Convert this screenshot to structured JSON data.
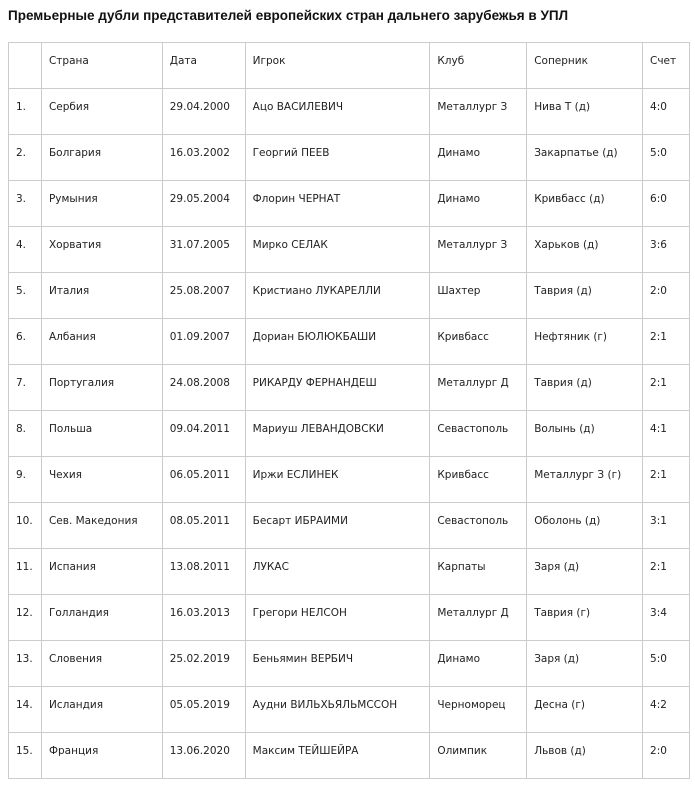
{
  "title": "Премьерные дубли представителей европейских стран дальнего зарубежья в УПЛ",
  "table": {
    "headers": [
      "",
      "Страна",
      "Дата",
      "Игрок",
      "Клуб",
      "Соперник",
      "Счет"
    ],
    "rows": [
      [
        "1.",
        "Сербия",
        "29.04.2000",
        "Ацо ВАСИЛЕВИЧ",
        "Металлург З",
        "Нива Т (д)",
        "4:0"
      ],
      [
        "2.",
        "Болгария",
        "16.03.2002",
        "Георгий ПЕЕВ",
        "Динамо",
        "Закарпатье (д)",
        "5:0"
      ],
      [
        "3.",
        "Румыния",
        "29.05.2004",
        "Флорин ЧЕРНАТ",
        "Динамо",
        "Кривбасс (д)",
        "6:0"
      ],
      [
        "4.",
        "Хорватия",
        "31.07.2005",
        "Мирко СЕЛАК",
        "Металлург З",
        "Харьков (д)",
        "3:6"
      ],
      [
        "5.",
        "Италия",
        "25.08.2007",
        "Кристиано ЛУКАРЕЛЛИ",
        "Шахтер",
        "Таврия (д)",
        "2:0"
      ],
      [
        "6.",
        "Албания",
        "01.09.2007",
        "Дориан БЮЛЮКБАШИ",
        "Кривбасс",
        "Нефтяник (г)",
        "2:1"
      ],
      [
        "7.",
        "Португалия",
        "24.08.2008",
        "РИКАРДУ ФЕРНАНДЕШ",
        "Металлург Д",
        "Таврия (д)",
        "2:1"
      ],
      [
        "8.",
        "Польша",
        "09.04.2011",
        "Мариуш ЛЕВАНДОВСКИ",
        "Севастополь",
        "Волынь (д)",
        "4:1"
      ],
      [
        "9.",
        "Чехия",
        "06.05.2011",
        "Иржи ЕСЛИНЕК",
        "Кривбасс",
        "Металлург З (г)",
        "2:1"
      ],
      [
        "10.",
        "Сев. Македония",
        "08.05.2011",
        "Бесарт ИБРАИМИ",
        "Севастополь",
        "Оболонь (д)",
        "3:1"
      ],
      [
        "11.",
        "Испания",
        "13.08.2011",
        "ЛУКАС",
        "Карпаты",
        "Заря (д)",
        "2:1"
      ],
      [
        "12.",
        "Голландия",
        "16.03.2013",
        "Грегори НЕЛСОН",
        "Металлург Д",
        "Таврия (г)",
        "3:4"
      ],
      [
        "13.",
        "Словения",
        "25.02.2019",
        "Беньямин ВЕРБИЧ",
        "Динамо",
        "Заря (д)",
        "5:0"
      ],
      [
        "14.",
        "Исландия",
        "05.05.2019",
        "Аудни ВИЛЬХЬЯЛЬМССОН",
        "Черноморец",
        "Десна (г)",
        "4:2"
      ],
      [
        "15.",
        "Франция",
        "13.06.2020",
        "Максим ТЕЙШЕЙРА",
        "Олимпик",
        "Львов (д)",
        "2:0"
      ]
    ]
  }
}
